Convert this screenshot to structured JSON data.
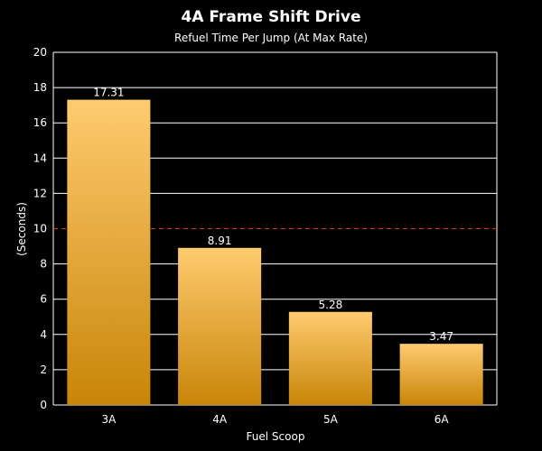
{
  "chart_data": {
    "type": "bar",
    "title": "4A Frame Shift Drive",
    "subtitle": "Refuel Time Per Jump (At Max Rate)",
    "xlabel": "Fuel Scoop",
    "ylabel": "(Seconds)",
    "categories": [
      "3A",
      "4A",
      "5A",
      "6A"
    ],
    "values": [
      17.31,
      8.91,
      5.28,
      3.47
    ],
    "data_labels": [
      "17.31",
      "8.91",
      "5.28",
      "3.47"
    ],
    "ylim": [
      0,
      20
    ],
    "yticks": [
      0,
      2,
      4,
      6,
      8,
      10,
      12,
      14,
      16,
      18,
      20
    ],
    "ytick_labels": [
      "0",
      "2",
      "4",
      "6",
      "8",
      "10",
      "12",
      "14",
      "16",
      "18",
      "20"
    ],
    "highlight_tick": 10,
    "reference_line": {
      "value": 10,
      "style": "dashed",
      "color": "#d43a1a"
    },
    "grid": true,
    "legend": false,
    "colors": {
      "background": "#000000",
      "bar_top": "#ffcb70",
      "bar_bottom": "#c88508",
      "grid": "#ffffff",
      "text": "#ffffff",
      "highlight_text": "#e23b1e"
    }
  }
}
